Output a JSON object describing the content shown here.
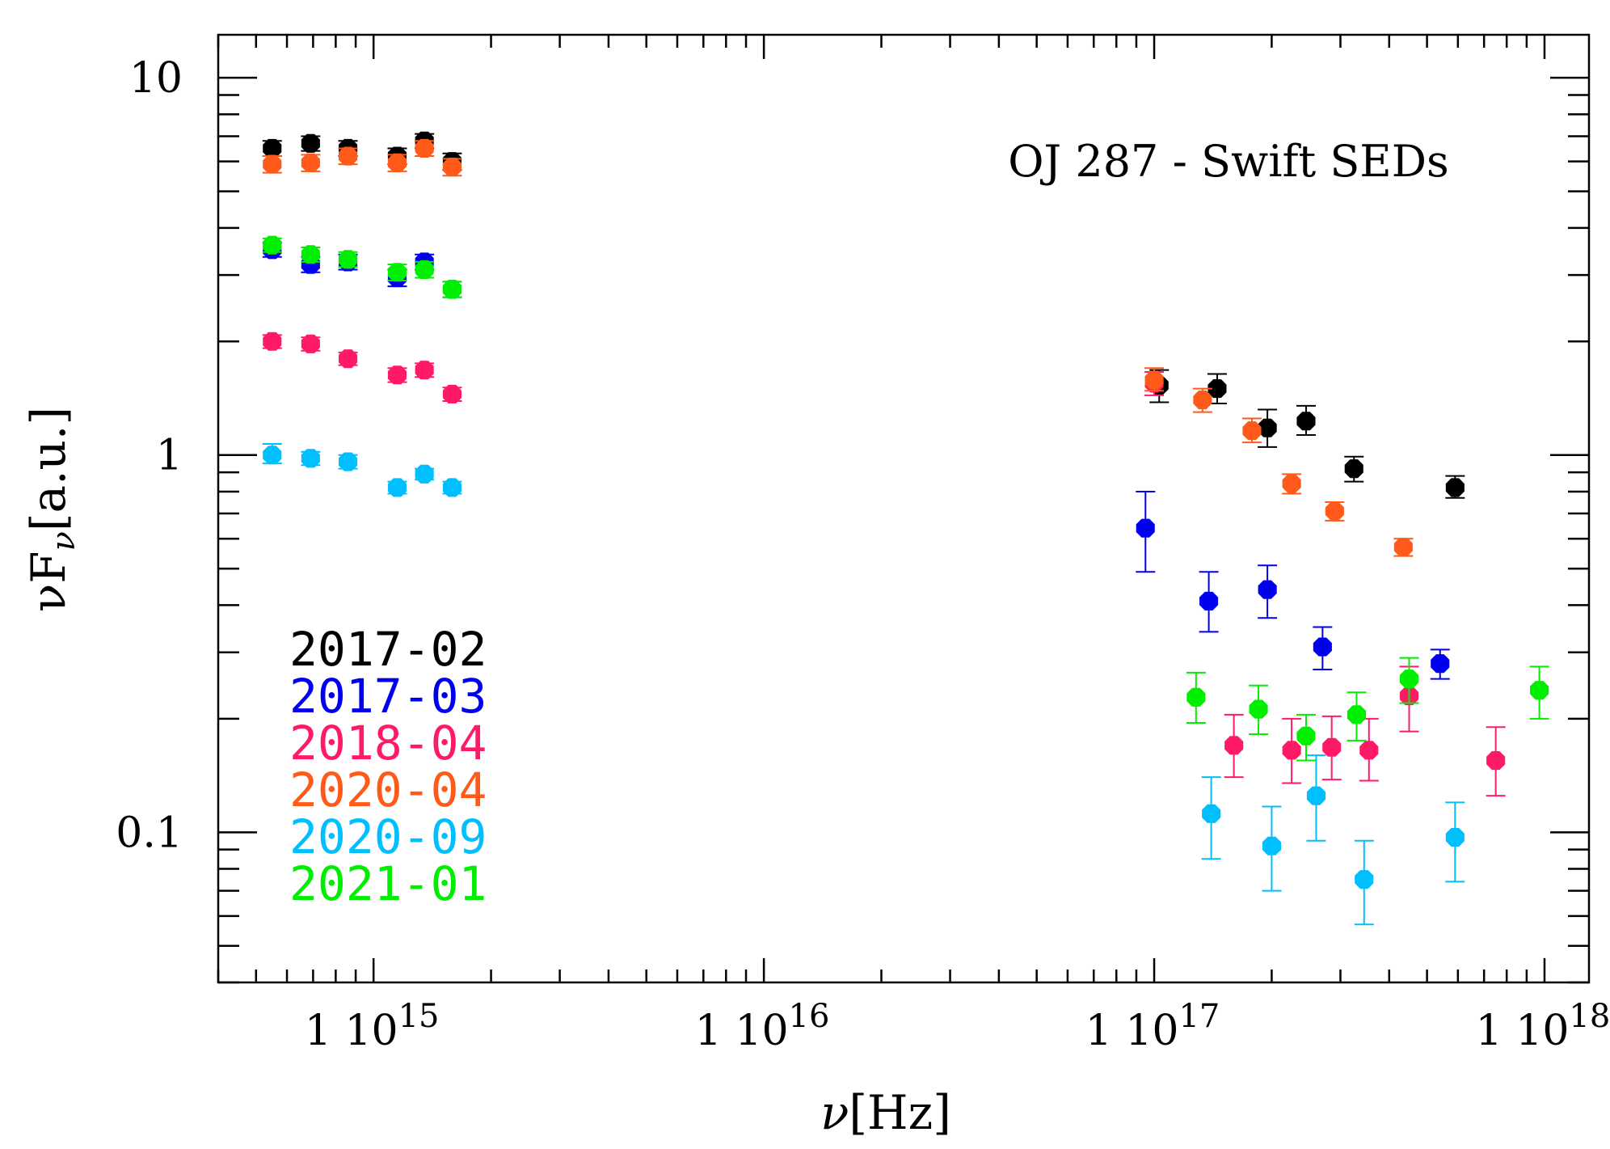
{
  "chart_data": {
    "type": "scatter",
    "title": "OJ 287 - Swift SEDs",
    "xlabel": {
      "main": "ν",
      "bracket": "[Hz]"
    },
    "ylabel": {
      "main": "νF",
      "sub": "ν",
      "bracket": "[a.u.]"
    },
    "xscale": "log",
    "yscale": "log",
    "xlim": [
      400000000000000.0,
      1.3e+18
    ],
    "ylim": [
      0.04,
      13
    ],
    "x_ticks": [
      {
        "value": 1000000000000000.0,
        "mantissa": "1",
        "base": "10",
        "exp": "15"
      },
      {
        "value": 1e+16,
        "mantissa": "1",
        "base": "10",
        "exp": "16"
      },
      {
        "value": 1e+17,
        "mantissa": "1",
        "base": "10",
        "exp": "17"
      },
      {
        "value": 1e+18,
        "mantissa": "1",
        "base": "10",
        "exp": "18"
      }
    ],
    "y_ticks": [
      {
        "value": 0.1,
        "label": "0.1"
      },
      {
        "value": 1,
        "label": "1"
      },
      {
        "value": 10,
        "label": "10"
      }
    ],
    "legend_position": "bottom-left",
    "series": [
      {
        "name": "2017-02",
        "color": "#000000",
        "points": [
          {
            "x": 550000000000000.0,
            "y": 6.5,
            "lo": 6.2,
            "hi": 6.8
          },
          {
            "x": 690000000000000.0,
            "y": 6.7,
            "lo": 6.4,
            "hi": 7.0
          },
          {
            "x": 860000000000000.0,
            "y": 6.5,
            "lo": 6.2,
            "hi": 6.8
          },
          {
            "x": 1150000000000000.0,
            "y": 6.2,
            "lo": 5.9,
            "hi": 6.5
          },
          {
            "x": 1350000000000000.0,
            "y": 6.8,
            "lo": 6.5,
            "hi": 7.1
          },
          {
            "x": 1590000000000000.0,
            "y": 6.0,
            "lo": 5.7,
            "hi": 6.3
          },
          {
            "x": 1.03e+17,
            "y": 1.53,
            "lo": 1.38,
            "hi": 1.68
          },
          {
            "x": 1.45e+17,
            "y": 1.5,
            "lo": 1.37,
            "hi": 1.64
          },
          {
            "x": 1.95e+17,
            "y": 1.18,
            "lo": 1.05,
            "hi": 1.32
          },
          {
            "x": 2.45e+17,
            "y": 1.23,
            "lo": 1.13,
            "hi": 1.35
          },
          {
            "x": 3.25e+17,
            "y": 0.92,
            "lo": 0.85,
            "hi": 0.99
          },
          {
            "x": 5.9e+17,
            "y": 0.82,
            "lo": 0.77,
            "hi": 0.88
          }
        ]
      },
      {
        "name": "2017-03",
        "color": "#0000ee",
        "points": [
          {
            "x": 550000000000000.0,
            "y": 3.5,
            "lo": 3.35,
            "hi": 3.65
          },
          {
            "x": 690000000000000.0,
            "y": 3.2,
            "lo": 3.05,
            "hi": 3.35
          },
          {
            "x": 860000000000000.0,
            "y": 3.25,
            "lo": 3.1,
            "hi": 3.4
          },
          {
            "x": 1150000000000000.0,
            "y": 2.95,
            "lo": 2.8,
            "hi": 3.1
          },
          {
            "x": 1350000000000000.0,
            "y": 3.25,
            "lo": 3.1,
            "hi": 3.4
          },
          {
            "x": 1590000000000000.0,
            "y": 2.75,
            "lo": 2.62,
            "hi": 2.88
          },
          {
            "x": 9.5e+16,
            "y": 0.64,
            "lo": 0.49,
            "hi": 0.8
          },
          {
            "x": 1.38e+17,
            "y": 0.41,
            "lo": 0.34,
            "hi": 0.49
          },
          {
            "x": 1.95e+17,
            "y": 0.44,
            "lo": 0.37,
            "hi": 0.51
          },
          {
            "x": 2.7e+17,
            "y": 0.31,
            "lo": 0.27,
            "hi": 0.35
          },
          {
            "x": 5.4e+17,
            "y": 0.28,
            "lo": 0.255,
            "hi": 0.305
          }
        ]
      },
      {
        "name": "2018-04",
        "color": "#ff1a66",
        "points": [
          {
            "x": 550000000000000.0,
            "y": 2.0,
            "lo": 1.92,
            "hi": 2.08
          },
          {
            "x": 690000000000000.0,
            "y": 1.97,
            "lo": 1.89,
            "hi": 2.05
          },
          {
            "x": 860000000000000.0,
            "y": 1.8,
            "lo": 1.73,
            "hi": 1.87
          },
          {
            "x": 1150000000000000.0,
            "y": 1.63,
            "lo": 1.56,
            "hi": 1.7
          },
          {
            "x": 1350000000000000.0,
            "y": 1.68,
            "lo": 1.61,
            "hi": 1.75
          },
          {
            "x": 1590000000000000.0,
            "y": 1.45,
            "lo": 1.39,
            "hi": 1.51
          },
          {
            "x": 1e+17,
            "y": 1.55,
            "lo": 1.44,
            "hi": 1.66
          },
          {
            "x": 1.6e+17,
            "y": 0.17,
            "lo": 0.14,
            "hi": 0.205
          },
          {
            "x": 2.25e+17,
            "y": 0.165,
            "lo": 0.135,
            "hi": 0.2
          },
          {
            "x": 2.85e+17,
            "y": 0.168,
            "lo": 0.138,
            "hi": 0.203
          },
          {
            "x": 3.55e+17,
            "y": 0.165,
            "lo": 0.137,
            "hi": 0.2
          },
          {
            "x": 4.5e+17,
            "y": 0.23,
            "lo": 0.185,
            "hi": 0.275
          },
          {
            "x": 7.5e+17,
            "y": 0.155,
            "lo": 0.125,
            "hi": 0.19
          }
        ]
      },
      {
        "name": "2020-04",
        "color": "#ff5a1a",
        "points": [
          {
            "x": 550000000000000.0,
            "y": 5.9,
            "lo": 5.6,
            "hi": 6.2
          },
          {
            "x": 690000000000000.0,
            "y": 5.95,
            "lo": 5.65,
            "hi": 6.25
          },
          {
            "x": 860000000000000.0,
            "y": 6.2,
            "lo": 5.9,
            "hi": 6.5
          },
          {
            "x": 1150000000000000.0,
            "y": 5.95,
            "lo": 5.65,
            "hi": 6.25
          },
          {
            "x": 1350000000000000.0,
            "y": 6.5,
            "lo": 6.2,
            "hi": 6.8
          },
          {
            "x": 1590000000000000.0,
            "y": 5.8,
            "lo": 5.5,
            "hi": 6.1
          },
          {
            "x": 1e+17,
            "y": 1.58,
            "lo": 1.48,
            "hi": 1.7
          },
          {
            "x": 1.33e+17,
            "y": 1.4,
            "lo": 1.3,
            "hi": 1.5
          },
          {
            "x": 1.78e+17,
            "y": 1.16,
            "lo": 1.08,
            "hi": 1.25
          },
          {
            "x": 2.25e+17,
            "y": 0.84,
            "lo": 0.79,
            "hi": 0.89
          },
          {
            "x": 2.9e+17,
            "y": 0.71,
            "lo": 0.67,
            "hi": 0.75
          },
          {
            "x": 4.35e+17,
            "y": 0.57,
            "lo": 0.54,
            "hi": 0.6
          }
        ]
      },
      {
        "name": "2020-09",
        "color": "#00bfff",
        "points": [
          {
            "x": 550000000000000.0,
            "y": 1.0,
            "lo": 0.95,
            "hi": 1.07
          },
          {
            "x": 690000000000000.0,
            "y": 0.98,
            "lo": 0.94,
            "hi": 1.02
          },
          {
            "x": 860000000000000.0,
            "y": 0.96,
            "lo": 0.92,
            "hi": 1.0
          },
          {
            "x": 1150000000000000.0,
            "y": 0.82,
            "lo": 0.79,
            "hi": 0.85
          },
          {
            "x": 1350000000000000.0,
            "y": 0.89,
            "lo": 0.86,
            "hi": 0.92
          },
          {
            "x": 1590000000000000.0,
            "y": 0.82,
            "lo": 0.79,
            "hi": 0.85
          },
          {
            "x": 1.4e+17,
            "y": 0.112,
            "lo": 0.085,
            "hi": 0.14
          },
          {
            "x": 2e+17,
            "y": 0.092,
            "lo": 0.07,
            "hi": 0.117
          },
          {
            "x": 2.6e+17,
            "y": 0.125,
            "lo": 0.095,
            "hi": 0.16
          },
          {
            "x": 3.45e+17,
            "y": 0.075,
            "lo": 0.057,
            "hi": 0.095
          },
          {
            "x": 5.9e+17,
            "y": 0.097,
            "lo": 0.074,
            "hi": 0.12
          }
        ]
      },
      {
        "name": "2021-01",
        "color": "#00ee00",
        "points": [
          {
            "x": 550000000000000.0,
            "y": 3.6,
            "lo": 3.45,
            "hi": 3.75
          },
          {
            "x": 690000000000000.0,
            "y": 3.4,
            "lo": 3.25,
            "hi": 3.55
          },
          {
            "x": 860000000000000.0,
            "y": 3.3,
            "lo": 3.15,
            "hi": 3.45
          },
          {
            "x": 1150000000000000.0,
            "y": 3.05,
            "lo": 2.9,
            "hi": 3.2
          },
          {
            "x": 1350000000000000.0,
            "y": 3.1,
            "lo": 2.95,
            "hi": 3.25
          },
          {
            "x": 1590000000000000.0,
            "y": 2.75,
            "lo": 2.62,
            "hi": 2.88
          },
          {
            "x": 1.28e+17,
            "y": 0.228,
            "lo": 0.195,
            "hi": 0.265
          },
          {
            "x": 1.85e+17,
            "y": 0.212,
            "lo": 0.182,
            "hi": 0.245
          },
          {
            "x": 2.45e+17,
            "y": 0.18,
            "lo": 0.155,
            "hi": 0.205
          },
          {
            "x": 3.3e+17,
            "y": 0.205,
            "lo": 0.175,
            "hi": 0.235
          },
          {
            "x": 4.5e+17,
            "y": 0.255,
            "lo": 0.22,
            "hi": 0.29
          },
          {
            "x": 9.7e+17,
            "y": 0.238,
            "lo": 0.2,
            "hi": 0.275
          }
        ]
      }
    ]
  }
}
